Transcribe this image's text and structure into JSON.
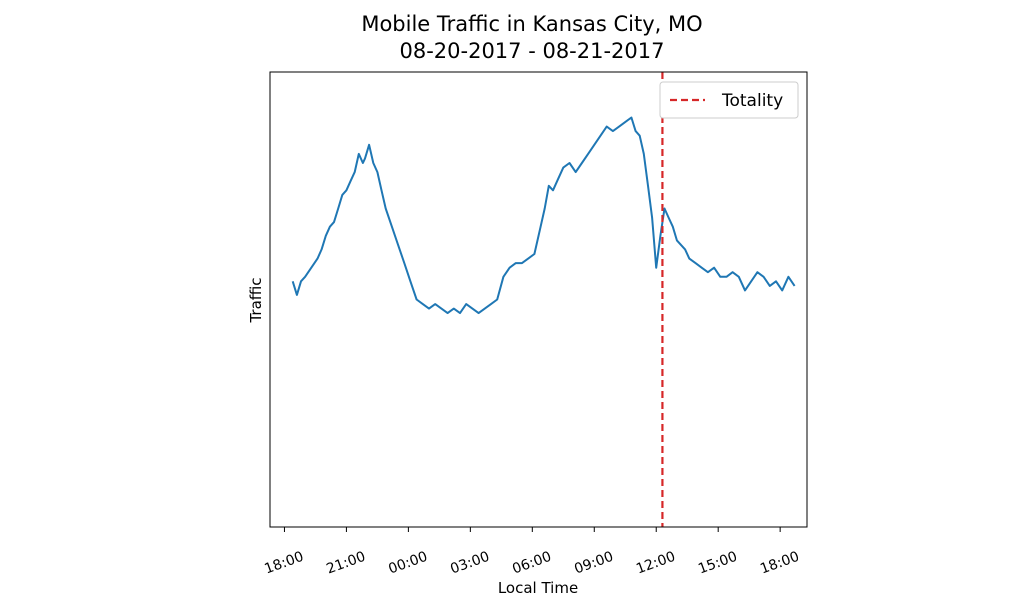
{
  "chart_data": {
    "type": "line",
    "title": [
      "Mobile Traffic in Kansas City, MO",
      "08-20-2017 - 08-21-2017"
    ],
    "xlabel": "Local Time",
    "ylabel": "Traffic",
    "x_ticks": [
      "18:00",
      "21:00",
      "00:00",
      "03:00",
      "06:00",
      "09:00",
      "12:00",
      "15:00",
      "18:00"
    ],
    "x_tick_hours": [
      18,
      21,
      24,
      27,
      30,
      33,
      36,
      39,
      42
    ],
    "xlim_hours": [
      17.3,
      43.3
    ],
    "ylim": [
      0,
      100
    ],
    "y_ticks_shown": false,
    "grid": false,
    "legend": {
      "position": "top-right",
      "entries": [
        "Totality"
      ]
    },
    "colors": {
      "series": "#1f77b4",
      "totality": "#d62728"
    },
    "series": [
      {
        "color": "#1f77b4",
        "x": [
          18.4,
          18.6,
          18.8,
          19.0,
          19.3,
          19.6,
          19.8,
          20.0,
          20.2,
          20.4,
          20.6,
          20.8,
          21.0,
          21.2,
          21.4,
          21.6,
          21.8,
          21.9,
          22.1,
          22.3,
          22.5,
          22.7,
          22.9,
          23.2,
          23.5,
          23.8,
          24.1,
          24.4,
          24.7,
          25.0,
          25.3,
          25.6,
          25.9,
          26.2,
          26.5,
          26.8,
          27.1,
          27.4,
          27.7,
          28.0,
          28.3,
          28.6,
          28.9,
          29.2,
          29.5,
          29.8,
          30.1,
          30.4,
          30.6,
          30.8,
          31.0,
          31.2,
          31.5,
          31.8,
          32.1,
          32.4,
          32.7,
          33.0,
          33.3,
          33.6,
          33.9,
          34.2,
          34.5,
          34.8,
          35.0,
          35.2,
          35.4,
          35.6,
          35.8,
          36.0,
          36.2,
          36.4,
          36.6,
          36.8,
          37.0,
          37.2,
          37.4,
          37.6,
          37.9,
          38.2,
          38.5,
          38.8,
          39.1,
          39.4,
          39.7,
          40.0,
          40.3,
          40.6,
          40.9,
          41.2,
          41.5,
          41.8,
          42.1,
          42.4,
          42.7
        ],
        "y": [
          54,
          51,
          54,
          55,
          57,
          59,
          61,
          64,
          66,
          67,
          70,
          73,
          74,
          76,
          78,
          82,
          80,
          81,
          84,
          80,
          78,
          74,
          70,
          66,
          62,
          58,
          54,
          50,
          49,
          48,
          49,
          48,
          47,
          48,
          47,
          49,
          48,
          47,
          48,
          49,
          50,
          55,
          57,
          58,
          58,
          59,
          60,
          66,
          70,
          75,
          74,
          76,
          79,
          80,
          78,
          80,
          82,
          84,
          86,
          88,
          87,
          88,
          89,
          90,
          87,
          86,
          82,
          75,
          68,
          57,
          64,
          70,
          68,
          66,
          63,
          62,
          61,
          59,
          58,
          57,
          56,
          57,
          55,
          55,
          56,
          55,
          52,
          54,
          56,
          55,
          53,
          54,
          52,
          55,
          53
        ]
      }
    ],
    "totality_x": 36.3
  }
}
